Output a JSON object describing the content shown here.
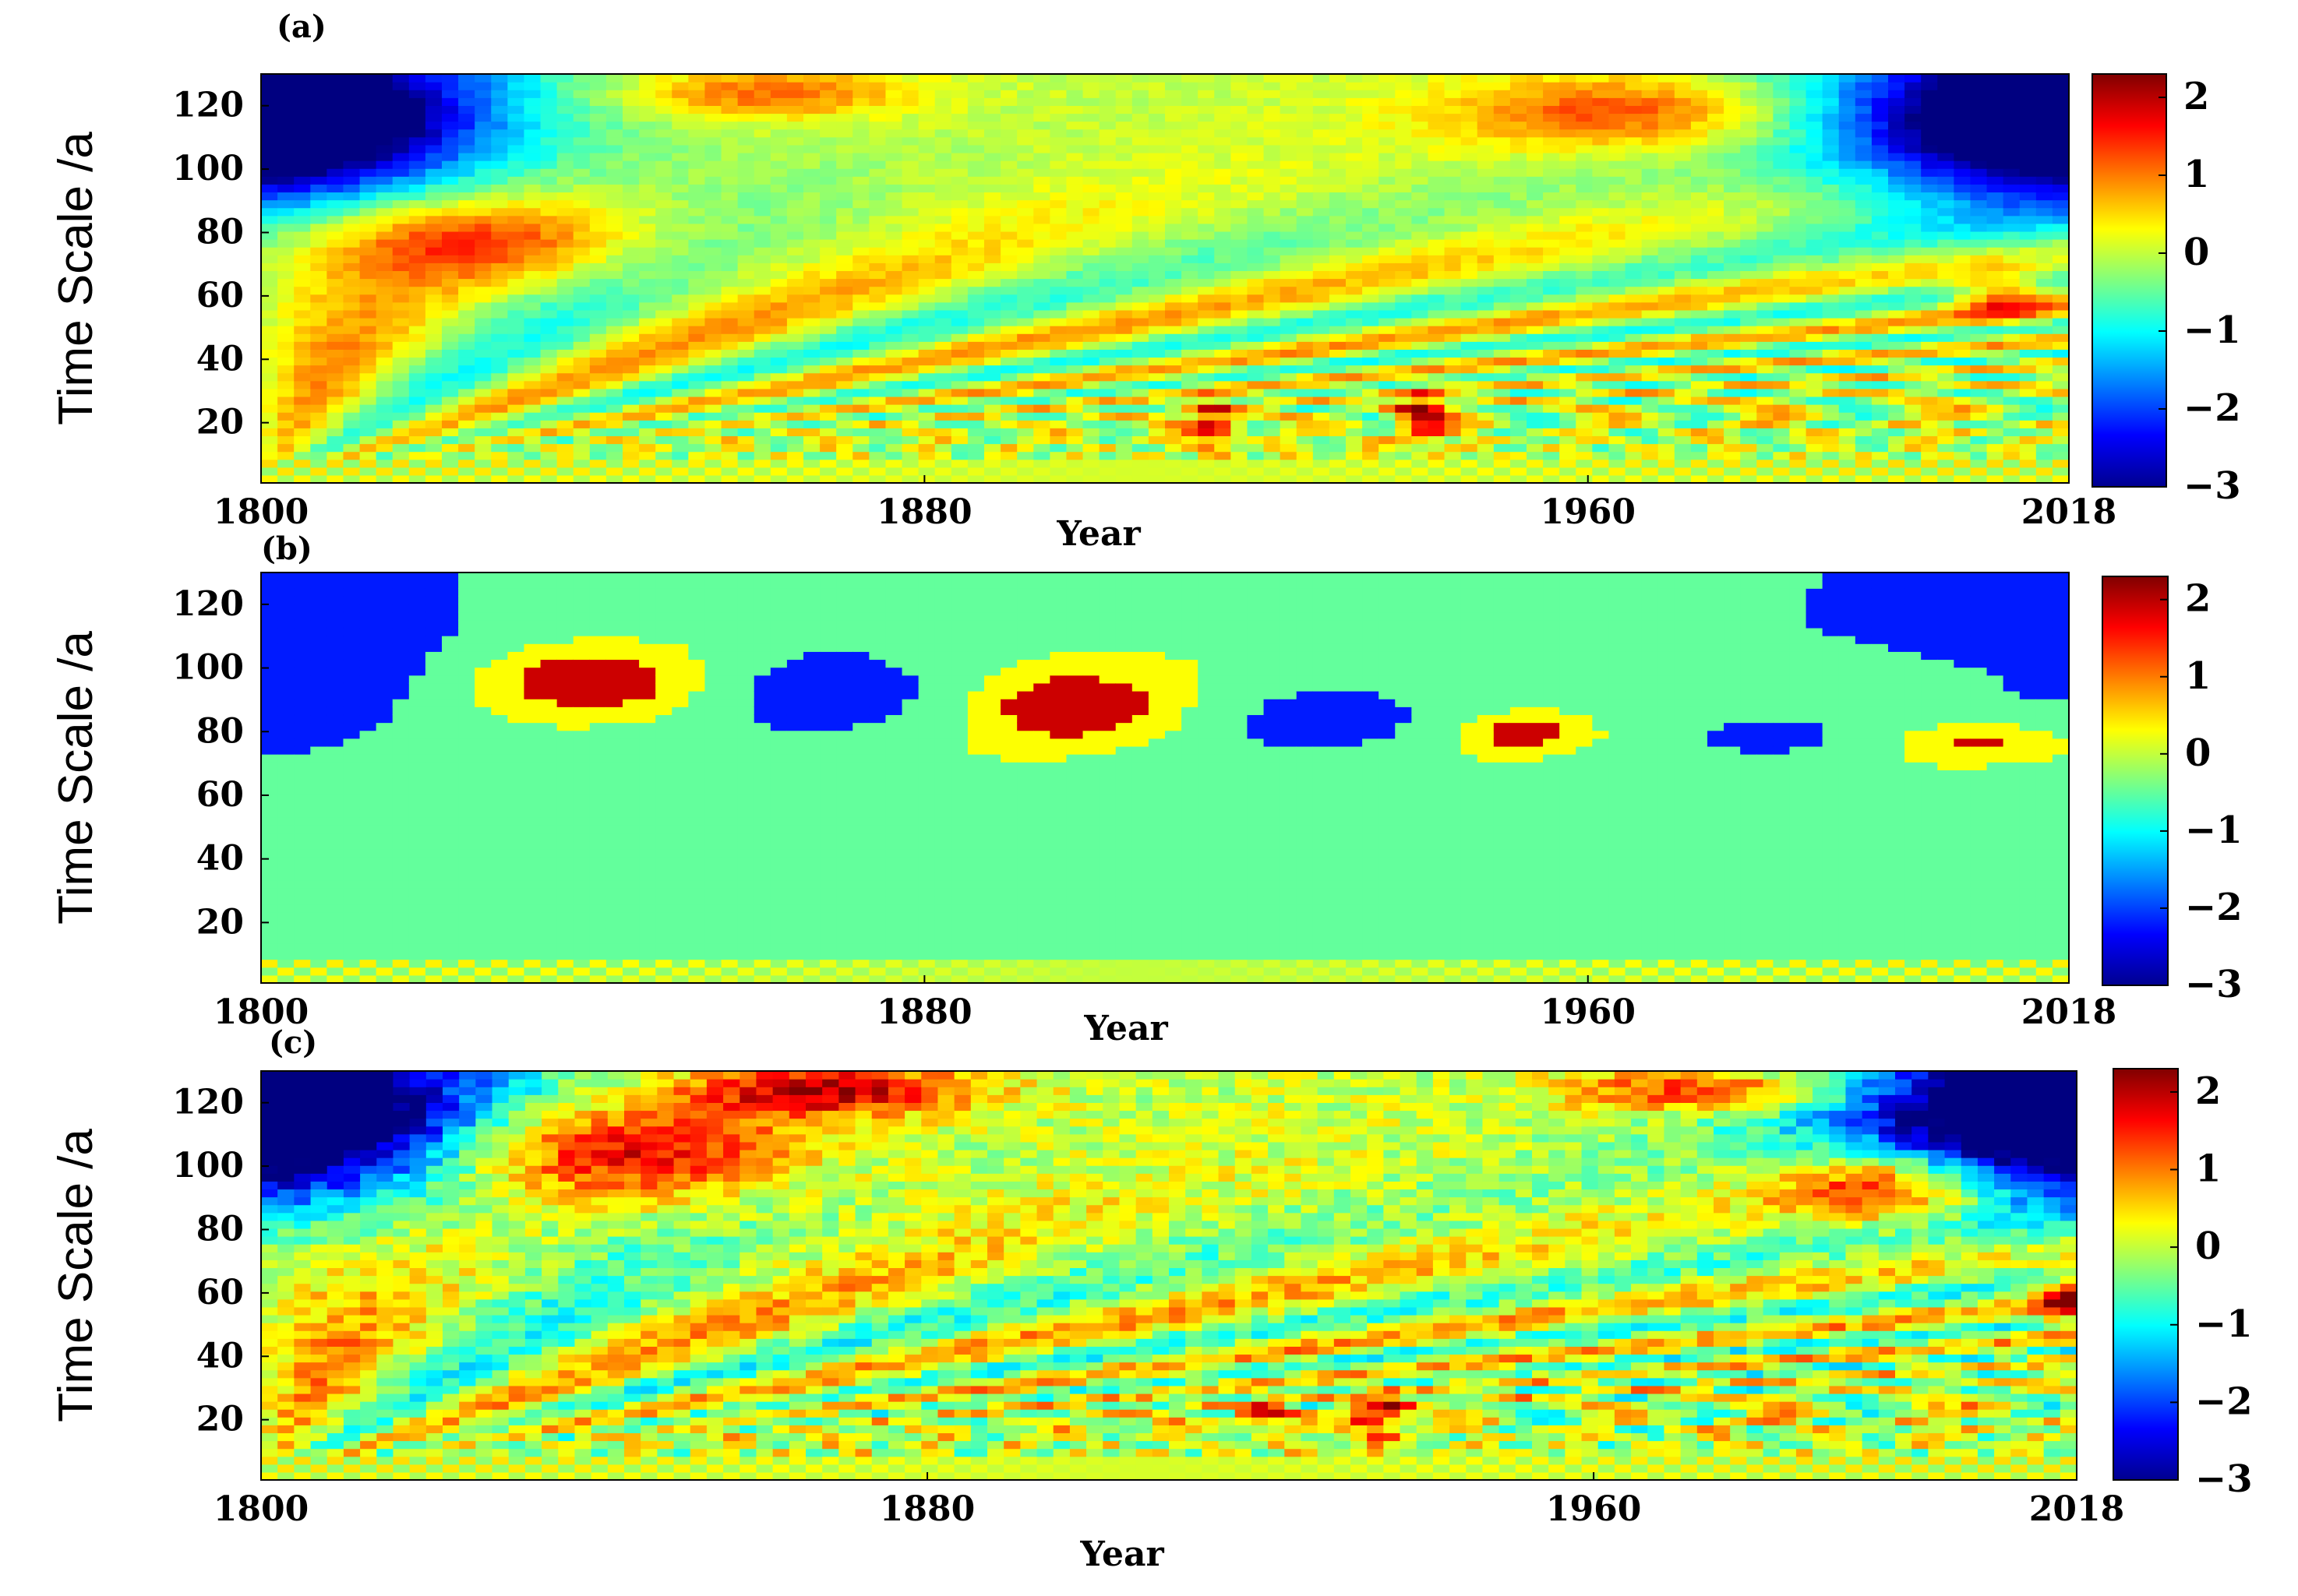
{
  "chart_data": [
    {
      "type": "heatmap",
      "panel_label": "(a)",
      "xlabel": "Year",
      "ylabel": "Time Scale /a",
      "xlim": [
        1800,
        2018
      ],
      "ylim": [
        1,
        130
      ],
      "xticks": [
        1800,
        1880,
        1960,
        2018
      ],
      "yticks": [
        20,
        40,
        60,
        80,
        100,
        120
      ],
      "colorbar": {
        "range": [
          -3,
          2.3
        ],
        "ticks": [
          2,
          1,
          0,
          -1,
          -2,
          -3
        ],
        "tick_labels": [
          "2",
          "1",
          "0",
          "−1",
          "−2",
          "−3"
        ],
        "colormap": "jet"
      },
      "pattern": "smooth",
      "features": [
        {
          "year": 1800,
          "scale": 115,
          "value": -3,
          "sx": 22,
          "sy": 22
        },
        {
          "year": 2018,
          "scale": 115,
          "value": -3,
          "sx": 22,
          "sy": 22
        },
        {
          "year": 1826,
          "scale": 78,
          "value": 1.4,
          "sx": 20,
          "sy": 14
        },
        {
          "year": 1860,
          "scale": 124,
          "value": 1.2,
          "sx": 18,
          "sy": 8
        },
        {
          "year": 1965,
          "scale": 118,
          "value": 1.4,
          "sx": 22,
          "sy": 12
        },
        {
          "year": 2010,
          "scale": 60,
          "value": 1.5,
          "sx": 6,
          "sy": 8
        },
        {
          "year": 1915,
          "scale": 20,
          "value": 1.8,
          "sx": 3,
          "sy": 8
        },
        {
          "year": 1940,
          "scale": 22,
          "value": 2.0,
          "sx": 3,
          "sy": 8
        }
      ]
    },
    {
      "type": "heatmap",
      "panel_label": "(b)",
      "xlabel": "Year",
      "ylabel": "Time Scale /a",
      "xlim": [
        1800,
        2018
      ],
      "ylim": [
        1,
        130
      ],
      "xticks": [
        1800,
        1880,
        1960,
        2018
      ],
      "yticks": [
        20,
        40,
        60,
        80,
        100,
        120
      ],
      "colorbar": {
        "range": [
          -3,
          2.3
        ],
        "ticks": [
          2,
          1,
          0,
          -1,
          -2,
          -3
        ],
        "tick_labels": [
          "2",
          "1",
          "0",
          "−1",
          "−2",
          "−3"
        ],
        "colormap": "jet"
      },
      "pattern": "blocky",
      "features": [
        {
          "year": 1803,
          "scale": 100,
          "value": -2.8,
          "sx": 14,
          "sy": 25
        },
        {
          "year": 1840,
          "scale": 96,
          "value": 2.6,
          "sx": 16,
          "sy": 12
        },
        {
          "year": 1868,
          "scale": 92,
          "value": -2.2,
          "sx": 14,
          "sy": 14
        },
        {
          "year": 1898,
          "scale": 88,
          "value": 2.2,
          "sx": 12,
          "sy": 12
        },
        {
          "year": 1928,
          "scale": 84,
          "value": -2.0,
          "sx": 12,
          "sy": 12
        },
        {
          "year": 1952,
          "scale": 80,
          "value": 2.0,
          "sx": 6,
          "sy": 6
        },
        {
          "year": 1981,
          "scale": 79,
          "value": -2.0,
          "sx": 8,
          "sy": 6
        },
        {
          "year": 2007,
          "scale": 78,
          "value": 2.0,
          "sx": 10,
          "sy": 7
        }
      ]
    },
    {
      "type": "heatmap",
      "panel_label": "(c)",
      "xlabel": "Year",
      "ylabel": "Time Scale /a",
      "xlim": [
        1800,
        2018
      ],
      "ylim": [
        1,
        130
      ],
      "xticks": [
        1800,
        1880,
        1960,
        2018
      ],
      "yticks": [
        20,
        40,
        60,
        80,
        100,
        120
      ],
      "colorbar": {
        "range": [
          -3,
          2.3
        ],
        "ticks": [
          2,
          1,
          0,
          -1,
          -2,
          -3
        ],
        "tick_labels": [
          "2",
          "1",
          "0",
          "−1",
          "−2",
          "−3"
        ],
        "colormap": "jet"
      },
      "pattern": "speckled",
      "features": [
        {
          "year": 1800,
          "scale": 115,
          "value": -3,
          "sx": 24,
          "sy": 22
        },
        {
          "year": 2018,
          "scale": 115,
          "value": -3,
          "sx": 24,
          "sy": 22
        },
        {
          "year": 1842,
          "scale": 105,
          "value": 2.1,
          "sx": 22,
          "sy": 16
        },
        {
          "year": 1868,
          "scale": 124,
          "value": 2.0,
          "sx": 18,
          "sy": 8
        },
        {
          "year": 1975,
          "scale": 124,
          "value": 1.8,
          "sx": 18,
          "sy": 7
        },
        {
          "year": 1995,
          "scale": 94,
          "value": 2.2,
          "sx": 14,
          "sy": 12
        },
        {
          "year": 2017,
          "scale": 58,
          "value": 2.0,
          "sx": 4,
          "sy": 8
        },
        {
          "year": 1934,
          "scale": 22,
          "value": 2.3,
          "sx": 3,
          "sy": 6
        },
        {
          "year": 1920,
          "scale": 22,
          "value": 1.9,
          "sx": 3,
          "sy": 4
        }
      ]
    }
  ]
}
